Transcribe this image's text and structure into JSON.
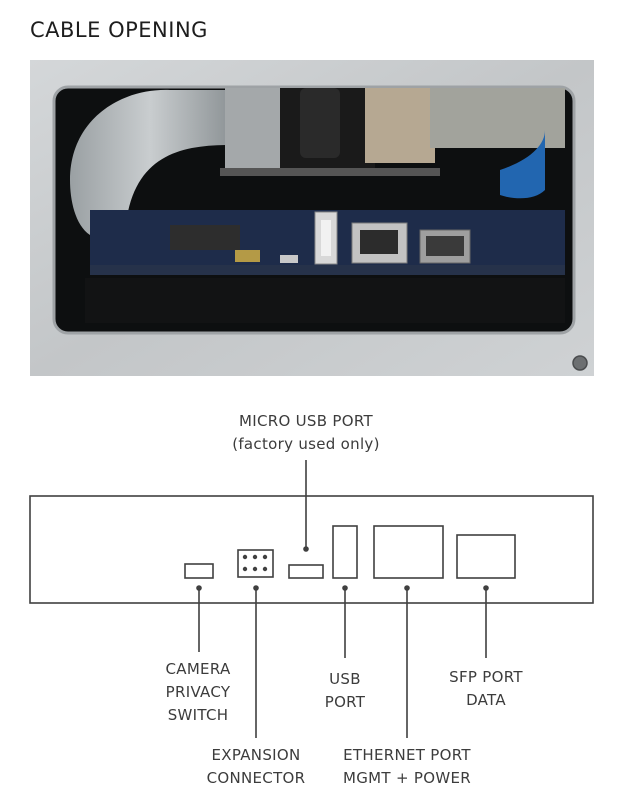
{
  "page": {
    "title": "CABLE OPENING"
  },
  "labels": {
    "micro_usb": {
      "line1": "MICRO USB PORT",
      "line2": "(factory used only)"
    },
    "camera": {
      "line1": "CAMERA",
      "line2": "PRIVACY",
      "line3": "SWITCH"
    },
    "usb": {
      "line1": "USB",
      "line2": "PORT"
    },
    "sfp": {
      "line1": "SFP PORT",
      "line2": "DATA"
    },
    "expansion": {
      "line1": "EXPANSION",
      "line2": "CONNECTOR"
    },
    "ethernet": {
      "line1": "ETHERNET PORT",
      "line2": "MGMT + POWER"
    }
  },
  "colors": {
    "frame": "#c9ccce",
    "cavity": "#0d0f10",
    "pcb": "#1e2c4a",
    "diagram_stroke": "#404040"
  }
}
